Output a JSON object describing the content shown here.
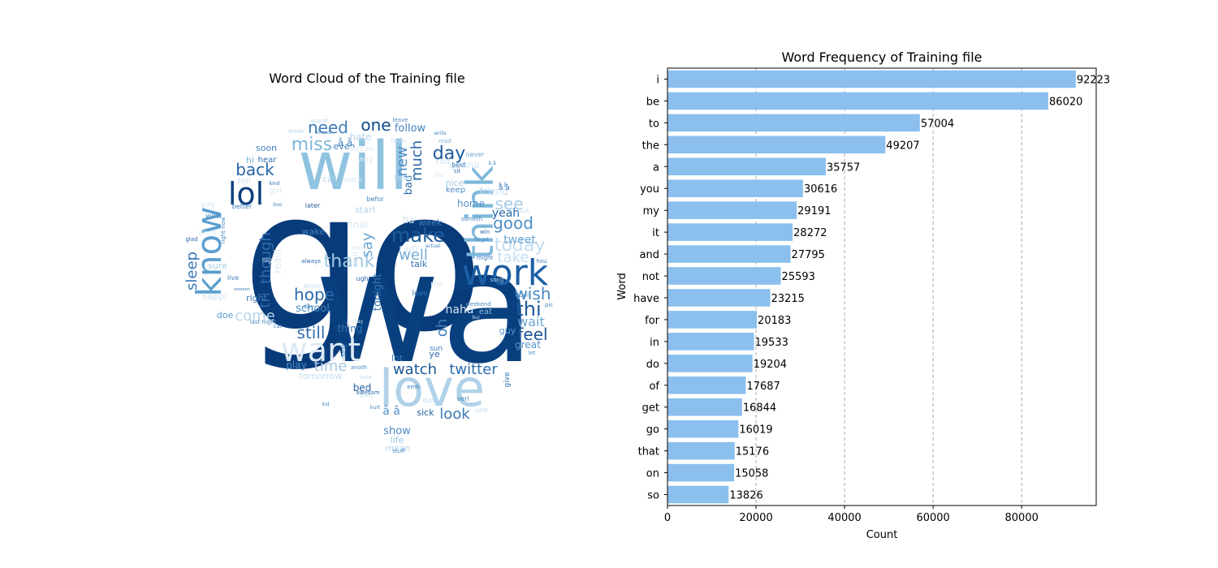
{
  "figure": {
    "panels": [
      {
        "kind": "wordcloud",
        "title": "Word Cloud of the Training file",
        "colormap": "Blues",
        "words": [
          {
            "text": "go",
            "color": "#083b7a",
            "rank": 1
          },
          {
            "text": "wa",
            "color": "#08407f",
            "rank": 2
          },
          {
            "text": "will",
            "color": "#8fc3df",
            "rank": 3
          },
          {
            "text": "love",
            "color": "#b0d2e8",
            "rank": 4
          },
          {
            "text": "work",
            "color": "#1c5fa5",
            "rank": 5
          },
          {
            "text": "want",
            "color": "#dce9f5",
            "rank": 6
          },
          {
            "text": "know",
            "color": "#5b9fcf",
            "rank": 7
          },
          {
            "text": "think",
            "color": "#7db8db",
            "rank": 8
          },
          {
            "text": "lol",
            "color": "#0d3f7c",
            "rank": 9
          },
          {
            "text": "make",
            "color": "#1e5c9d",
            "rank": 10
          },
          {
            "text": "day",
            "color": "#1a5a9e",
            "rank": 11
          },
          {
            "text": "miss",
            "color": "#7fb4d9",
            "rank": 12
          },
          {
            "text": "back",
            "color": "#2567a8",
            "rank": 13
          },
          {
            "text": "need",
            "color": "#3d7cb8",
            "rank": 14
          },
          {
            "text": "one",
            "color": "#0f4a8a",
            "rank": 15
          },
          {
            "text": "see",
            "color": "#a7cbe5",
            "rank": 16
          },
          {
            "text": "good",
            "color": "#4d8fc6",
            "rank": 17
          },
          {
            "text": "today",
            "color": "#c4dcef",
            "rank": 18
          },
          {
            "text": "thank",
            "color": "#9ec7e2",
            "rank": 19
          },
          {
            "text": "hope",
            "color": "#2a6aab",
            "rank": 20
          },
          {
            "text": "still",
            "color": "#316fb0",
            "rank": 21
          },
          {
            "text": "feel",
            "color": "#1b5598",
            "rank": 22
          },
          {
            "text": "wish",
            "color": "#4a8ac3",
            "rank": 23
          },
          {
            "text": "thi",
            "color": "#1b5a9b",
            "rank": 24
          },
          {
            "text": "watch",
            "color": "#1d5797",
            "rank": 25
          },
          {
            "text": "twitter",
            "color": "#2d6dad",
            "rank": 26
          },
          {
            "text": "time",
            "color": "#a5c8e3",
            "rank": 27
          },
          {
            "text": "look",
            "color": "#3a79b5",
            "rank": 28
          },
          {
            "text": "come",
            "color": "#b7d4ea",
            "rank": 29
          },
          {
            "text": "tri",
            "color": "#2c6bad",
            "rank": 30
          },
          {
            "text": "though",
            "color": "#2e6caf",
            "rank": 31
          },
          {
            "text": "sleep",
            "color": "#3777b5",
            "rank": 32
          },
          {
            "text": "much",
            "color": "#2867a9",
            "rank": 33
          },
          {
            "text": "new",
            "color": "#4e8ec6",
            "rank": 34
          },
          {
            "text": "take",
            "color": "#c7ddef",
            "rank": 35
          },
          {
            "text": "wait",
            "color": "#6aa5d2",
            "rank": 36
          },
          {
            "text": "well",
            "color": "#73abd6",
            "rank": 37
          },
          {
            "text": "say",
            "color": "#6ba6d2",
            "rank": 38
          },
          {
            "text": "oh",
            "color": "#3d7db9",
            "rank": 39
          },
          {
            "text": "follow",
            "color": "#4282bd",
            "rank": 40
          },
          {
            "text": "school",
            "color": "#4a89c2",
            "rank": 41
          },
          {
            "text": "tweet",
            "color": "#6aa5d2",
            "rank": 42
          },
          {
            "text": "yeah",
            "color": "#2a69aa",
            "rank": 43
          },
          {
            "text": "tonight",
            "color": "#3574b3",
            "rank": 44
          },
          {
            "text": "right",
            "color": "#3a78b4",
            "rank": 45
          },
          {
            "text": "play",
            "color": "#4c8ac3",
            "rank": 46
          },
          {
            "text": "thing",
            "color": "#3776b3",
            "rank": 47
          },
          {
            "text": "great",
            "color": "#5896cb",
            "rank": 48
          },
          {
            "text": "show",
            "color": "#4c8bc4",
            "rank": 49
          },
          {
            "text": "life",
            "color": "#9fc6e2",
            "rank": 50
          },
          {
            "text": "mean",
            "color": "#b8d5ea",
            "rank": 51
          },
          {
            "text": "sick",
            "color": "#1f5c9d",
            "rank": 52
          },
          {
            "text": "bed",
            "color": "#1f5f9f",
            "rank": 53
          },
          {
            "text": "home",
            "color": "#5291c8",
            "rank": 54
          },
          {
            "text": "nice",
            "color": "#a3c9e3",
            "rank": 55
          },
          {
            "text": "hate",
            "color": "#b8d5ea",
            "rank": 56
          },
          {
            "text": "guy",
            "color": "#5a98cd",
            "rank": 57
          },
          {
            "text": "lot",
            "color": "#3c7bb8",
            "rank": 58
          },
          {
            "text": "ye",
            "color": "#2e6cae",
            "rank": 59
          },
          {
            "text": "soon",
            "color": "#4283be",
            "rank": 60
          },
          {
            "text": "tomorrow",
            "color": "#c6dcef",
            "rank": 61
          },
          {
            "text": "wake",
            "color": "#4080bb",
            "rank": 62
          },
          {
            "text": "talk",
            "color": "#3272b2",
            "rank": 63
          },
          {
            "text": "hear",
            "color": "#316fb0",
            "rank": 64
          },
          {
            "text": "doe",
            "color": "#5c9acd",
            "rank": 65
          },
          {
            "text": "realli",
            "color": "#d7e7f4",
            "rank": 66
          },
          {
            "text": "friend",
            "color": "#c8def0",
            "rank": 67
          },
          {
            "text": "bad",
            "color": "#2d6bac",
            "rank": 68
          },
          {
            "text": "week",
            "color": "#3d7cb8",
            "rank": 69
          },
          {
            "text": "even",
            "color": "#4485c0",
            "rank": 70
          },
          {
            "text": "start",
            "color": "#b5d3e9",
            "rank": 71
          },
          {
            "text": "sure",
            "color": "#aacde6",
            "rank": 72
          },
          {
            "text": "happi",
            "color": "#d0e3f2",
            "rank": 73
          },
          {
            "text": "final",
            "color": "#d9e8f5",
            "rank": 74
          },
          {
            "text": "eat",
            "color": "#8cbfde",
            "rank": 75
          },
          {
            "text": "gonna",
            "color": "#d6e6f4",
            "rank": 76
          },
          {
            "text": "haha",
            "color": "#d2e4f3",
            "rank": 77
          },
          {
            "text": "call",
            "color": "#a9cce5",
            "rank": 78
          },
          {
            "text": "sorri",
            "color": "#dde9f5",
            "rank": 79
          },
          {
            "text": "girl",
            "color": "#d7e7f4",
            "rank": 80
          },
          {
            "text": "hi",
            "color": "#7eb6da",
            "rank": 81
          },
          {
            "text": "yay",
            "color": "#d3e5f3",
            "rank": 82
          },
          {
            "text": "wow",
            "color": "#4f8ec6",
            "rank": 83
          },
          {
            "text": "tell",
            "color": "#cfe2f2",
            "rank": 84
          },
          {
            "text": "sun",
            "color": "#3b7ab7",
            "rank": 85
          },
          {
            "text": "rain",
            "color": "#dae8f5",
            "rank": 86
          },
          {
            "text": "best",
            "color": "#3878b5",
            "rank": 87
          },
          {
            "text": "keep",
            "color": "#4f8ec6",
            "rank": 88
          },
          {
            "text": "sad",
            "color": "#d6e6f4",
            "rank": 89
          },
          {
            "text": "suck",
            "color": "#d5e6f3",
            "rank": 90
          },
          {
            "text": "becau",
            "color": "#dce9f5",
            "rank": 91
          },
          {
            "text": "way",
            "color": "#dbe9f5",
            "rank": 92
          },
          {
            "text": "listen",
            "color": "#c4dbee",
            "rank": 93
          },
          {
            "text": "better",
            "color": "#3e7db9",
            "rank": 94
          },
          {
            "text": "later",
            "color": "#285f9c",
            "rank": 95
          },
          {
            "text": "cool",
            "color": "#5f9ccf",
            "rank": 96
          },
          {
            "text": "ugh",
            "color": "#2a69aa",
            "rank": 97
          },
          {
            "text": "live",
            "color": "#4482be",
            "rank": 98
          },
          {
            "text": "always",
            "color": "#2c6bac",
            "rank": 99
          },
          {
            "text": "night",
            "color": "#dfebf6",
            "rank": 100
          },
          {
            "text": "leav",
            "color": "#3474b3",
            "rank": 101
          },
          {
            "text": "weekend",
            "color": "#4d8cc5",
            "rank": 102
          },
          {
            "text": "win",
            "color": "#2b6aab",
            "rank": 103
          },
          {
            "text": "glad",
            "color": "#2e6daf",
            "rank": 104
          },
          {
            "text": "last night",
            "color": "#4685c0",
            "rank": 105
          },
          {
            "text": "right now",
            "color": "#4c8bc3",
            "rank": 106
          },
          {
            "text": "never",
            "color": "#6aa5d2",
            "rank": 107
          },
          {
            "text": "read",
            "color": "#7cb4d9",
            "rank": 108
          },
          {
            "text": "leave",
            "color": "#4c8bc3",
            "rank": 109
          },
          {
            "text": "break",
            "color": "#b5d3e9",
            "rank": 110
          },
          {
            "text": "sound",
            "color": "#b6d4ea",
            "rank": 111
          },
          {
            "text": "hou",
            "color": "#4180bc",
            "rank": 112
          },
          {
            "text": "let",
            "color": "#5b99cd",
            "rank": 113
          },
          {
            "text": "might",
            "color": "#3f7eba",
            "rank": 114
          },
          {
            "text": "enjoy",
            "color": "#c3daee",
            "rank": 115
          },
          {
            "text": "song",
            "color": "#a5cae3",
            "rank": 116
          },
          {
            "text": "give",
            "color": "#2f6eae",
            "rank": 117
          },
          {
            "text": "awesom",
            "color": "#2a68a9",
            "rank": 118
          },
          {
            "text": "stuff",
            "color": "#4e8dc5",
            "rank": 119
          },
          {
            "text": "befor",
            "color": "#4181bc",
            "rank": 120
          },
          {
            "text": "lose",
            "color": "#c6dcef",
            "rank": 121
          },
          {
            "text": "anoth",
            "color": "#4b8ac3",
            "rank": 122
          },
          {
            "text": "someth",
            "color": "#4383bf",
            "rank": 123
          },
          {
            "text": "first",
            "color": "#d9e8f5",
            "rank": 124
          },
          {
            "text": "okay",
            "color": "#dbe9f5",
            "rank": 125
          },
          {
            "text": "kind",
            "color": "#2d6cad",
            "rank": 126
          },
          {
            "text": "actual",
            "color": "#4383be",
            "rank": 127
          },
          {
            "text": "finish",
            "color": "#cfe2f2",
            "rank": 128
          },
          {
            "text": "alreadi",
            "color": "#4a89c2",
            "rank": 129
          },
          {
            "text": "write",
            "color": "#4786c1",
            "rank": 130
          },
          {
            "text": "tire",
            "color": "#d4e5f3",
            "rank": 131
          },
          {
            "text": "sit",
            "color": "#3776b3",
            "rank": 132
          },
          {
            "text": "veri",
            "color": "#4181bc",
            "rank": 133
          },
          {
            "text": "onli",
            "color": "#dbe9f5",
            "rank": 134
          },
          {
            "text": "car",
            "color": "#4080bb",
            "rank": 135
          },
          {
            "text": "forget",
            "color": "#4786c1",
            "rank": 136
          },
          {
            "text": "hurt",
            "color": "#3e7db9",
            "rank": 137
          },
          {
            "text": "boo",
            "color": "#4585bf",
            "rank": 138
          },
          {
            "text": "kid",
            "color": "#4484bf",
            "rank": 139
          },
          {
            "text": "someon",
            "color": "#4181bc",
            "rank": 140
          },
          {
            "text": "man",
            "color": "#c8ddef",
            "rank": 141
          },
          {
            "text": "fuck",
            "color": "#c4dbee",
            "rank": 142
          },
          {
            "text": "long",
            "color": "#4282bd",
            "rank": 143
          },
          {
            "text": "use",
            "color": "#c7ddef",
            "rank": 144
          },
          {
            "text": "out",
            "color": "#c3daee",
            "rank": 145
          },
          {
            "text": "pic",
            "color": "#4282bd",
            "rank": 146
          },
          {
            "text": "day",
            "color": "#4484bf",
            "rank": 147
          },
          {
            "text": "ha",
            "color": "#d1e3f2",
            "rank": 148
          },
          {
            "text": "mo",
            "color": "#d7e7f4",
            "rank": 149
          },
          {
            "text": "emb",
            "color": "#4181bc",
            "rank": 150
          },
          {
            "text": "bui",
            "color": "#c8ddef",
            "rank": 151
          },
          {
            "text": "â â",
            "color": "#5292c8",
            "rank": 152
          },
          {
            "text": "â â",
            "color": "#4787c1",
            "rank": 153
          },
          {
            "text": "â â",
            "color": "#3f7eba",
            "rank": 154
          },
          {
            "text": "â â",
            "color": "#4282bd",
            "rank": 155
          },
          {
            "text": "â â",
            "color": "#4383be",
            "rank": 156
          }
        ]
      },
      {
        "kind": "barh",
        "chart_data": {
          "type": "bar",
          "orientation": "horizontal",
          "title": "Word Frequency of Training file",
          "xlabel": "Count",
          "ylabel": "Word",
          "categories": [
            "i",
            "be",
            "to",
            "the",
            "a",
            "you",
            "my",
            "it",
            "and",
            "not",
            "have",
            "for",
            "in",
            "do",
            "of",
            "get",
            "go",
            "that",
            "on",
            "so"
          ],
          "values": [
            92223,
            86020,
            57004,
            49207,
            35757,
            30616,
            29191,
            28272,
            27795,
            25593,
            23215,
            20183,
            19533,
            19204,
            17687,
            16844,
            16019,
            15176,
            15058,
            13826
          ],
          "xlim": [
            0,
            96834
          ],
          "xticks": [
            0,
            20000,
            40000,
            60000,
            80000
          ],
          "grid": "x-axis dashed",
          "bar_color": "#8bbfee",
          "value_labels": true
        }
      }
    ]
  }
}
